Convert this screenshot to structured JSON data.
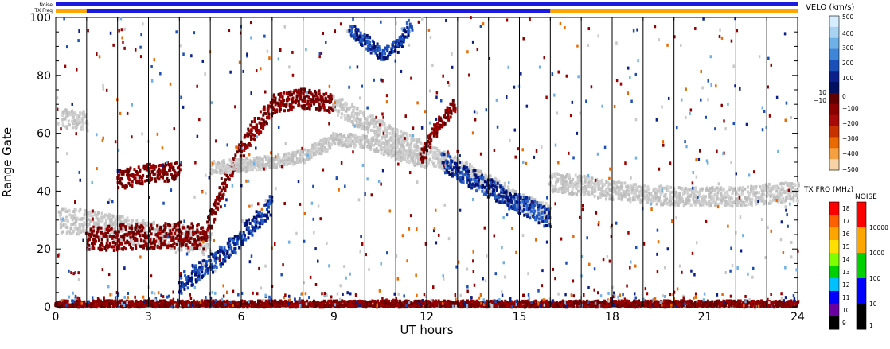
{
  "chart_data": {
    "type": "heatmap",
    "title": "",
    "xlabel": "UT hours",
    "ylabel": "Range Gate",
    "xlim": [
      0,
      24
    ],
    "ylim": [
      0,
      100
    ],
    "x_ticks": [
      0,
      3,
      6,
      9,
      12,
      15,
      18,
      21,
      24
    ],
    "y_ticks": [
      0,
      20,
      40,
      60,
      80,
      100
    ],
    "grid": "vertical lines every 1 hour",
    "status_bars": {
      "noise_label": "Noise",
      "txfreq_label": "TX Freq",
      "noise_color": "#1a1ae0",
      "txfreq_segments": [
        {
          "from": 0,
          "to": 1,
          "color": "#ffa500"
        },
        {
          "from": 1,
          "to": 16,
          "color": "#1a1ae0"
        },
        {
          "from": 16,
          "to": 24,
          "color": "#ffa500"
        }
      ]
    },
    "velocity_scale": {
      "title": "VELO (km/s)",
      "labels": [
        "500",
        "400",
        "300",
        "200",
        "100",
        "10",
        "0",
        "−10",
        "−100",
        "−200",
        "−300",
        "−400",
        "−500"
      ],
      "colors_top_to_bottom": [
        "#d6ecff",
        "#a8d4f2",
        "#6fb1e6",
        "#3f86d8",
        "#1a4fb8",
        "#0a1f8a",
        "#001060",
        "#600000",
        "#8b0000",
        "#a80a0a",
        "#c83200",
        "#e86a00",
        "#f5a040",
        "#f7d4a8"
      ]
    },
    "txfreq_scale": {
      "title": "TX FRQ (MHz)",
      "labels": [
        "18",
        "17",
        "16",
        "15",
        "14",
        "13",
        "12",
        "11",
        "10",
        "9"
      ],
      "colors_top_to_bottom": [
        "#ff0000",
        "#ff6000",
        "#ffa500",
        "#ffe000",
        "#80ff00",
        "#00d000",
        "#00c0ff",
        "#0000ff",
        "#6a00a0",
        "#000000"
      ]
    },
    "noise_scale": {
      "title": "NOISE",
      "labels": [
        "10000",
        "1000",
        "100",
        "10",
        "1"
      ],
      "colors_top_to_bottom": [
        "#ff0000",
        "#ffa500",
        "#00d000",
        "#0000ff",
        "#000000"
      ]
    },
    "features": [
      {
        "kind": "gray",
        "points": [
          [
            0.1,
            30
          ],
          [
            1,
            29
          ],
          [
            2,
            27
          ],
          [
            3,
            25
          ],
          [
            4,
            24
          ],
          [
            5,
            22
          ]
        ],
        "width": 4
      },
      {
        "kind": "gray",
        "points": [
          [
            0.2,
            65
          ],
          [
            1,
            64
          ]
        ],
        "width": 3
      },
      {
        "kind": "red",
        "points": [
          [
            1,
            23
          ],
          [
            2,
            24
          ],
          [
            3,
            24
          ],
          [
            4,
            25
          ],
          [
            4.8,
            24
          ]
        ],
        "width": 4
      },
      {
        "kind": "red",
        "points": [
          [
            2,
            44
          ],
          [
            3,
            46
          ],
          [
            4,
            47
          ]
        ],
        "width": 3
      },
      {
        "kind": "red",
        "points": [
          [
            4.8,
            25
          ],
          [
            5.5,
            45
          ],
          [
            6.3,
            60
          ],
          [
            7,
            70
          ],
          [
            8,
            72
          ],
          [
            9,
            70
          ]
        ],
        "width": 3
      },
      {
        "kind": "blue",
        "points": [
          [
            4,
            8
          ],
          [
            5,
            15
          ],
          [
            5.8,
            22
          ],
          [
            6.5,
            30
          ],
          [
            7,
            36
          ]
        ],
        "width": 3
      },
      {
        "kind": "gray",
        "points": [
          [
            5,
            48
          ],
          [
            7,
            50
          ],
          [
            8,
            52
          ],
          [
            9,
            58
          ],
          [
            10,
            57
          ],
          [
            11,
            53
          ],
          [
            12,
            50
          ]
        ],
        "width": 2
      },
      {
        "kind": "gray",
        "points": [
          [
            9,
            70
          ],
          [
            10,
            64
          ],
          [
            11,
            58
          ],
          [
            12,
            53
          ],
          [
            13,
            48
          ],
          [
            14,
            42
          ],
          [
            15,
            36
          ],
          [
            16,
            32
          ]
        ],
        "width": 3
      },
      {
        "kind": "red",
        "points": [
          [
            11.8,
            52
          ],
          [
            12.3,
            62
          ],
          [
            12.9,
            70
          ]
        ],
        "width": 2
      },
      {
        "kind": "blue",
        "points": [
          [
            12.5,
            50
          ],
          [
            13.5,
            44
          ],
          [
            14.5,
            38
          ],
          [
            15.5,
            33
          ],
          [
            16,
            30
          ]
        ],
        "width": 3
      },
      {
        "kind": "gray",
        "points": [
          [
            16,
            43
          ],
          [
            17,
            42
          ],
          [
            18,
            40
          ],
          [
            19,
            39
          ],
          [
            20,
            38
          ],
          [
            21,
            38
          ],
          [
            22,
            38
          ],
          [
            23,
            39
          ],
          [
            24,
            40
          ]
        ],
        "width": 3
      },
      {
        "kind": "blue",
        "points": [
          [
            9.5,
            96
          ],
          [
            10.5,
            87
          ],
          [
            11,
            90
          ],
          [
            11.5,
            98
          ]
        ],
        "width": 2
      },
      {
        "kind": "red",
        "points": [
          [
            0,
            1
          ],
          [
            24,
            1
          ]
        ],
        "width": 1
      }
    ]
  }
}
